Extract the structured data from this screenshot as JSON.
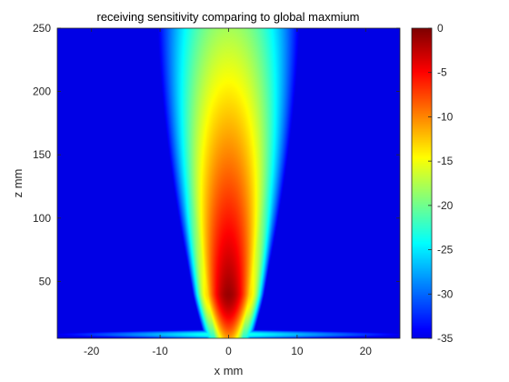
{
  "chart_data": {
    "type": "heatmap",
    "title": "receiving sensitivity comparing to global maxmium",
    "xlabel": "x mm",
    "ylabel": "z mm",
    "xlim": [
      -25,
      25
    ],
    "ylim": [
      5,
      250
    ],
    "x_ticks": [
      -20,
      -10,
      0,
      10,
      20
    ],
    "y_ticks": [
      50,
      100,
      150,
      200,
      250
    ],
    "colorbar": {
      "colormap": "jet",
      "clim": [
        -35,
        0
      ],
      "ticks": [
        0,
        -5,
        -10,
        -15,
        -20,
        -25,
        -30,
        -35
      ],
      "unit": ""
    },
    "field_description_values": {
      "peak_db": 0,
      "peak_z_mm": 40,
      "peak_x_mm": 0,
      "floor_db": -35
    }
  }
}
